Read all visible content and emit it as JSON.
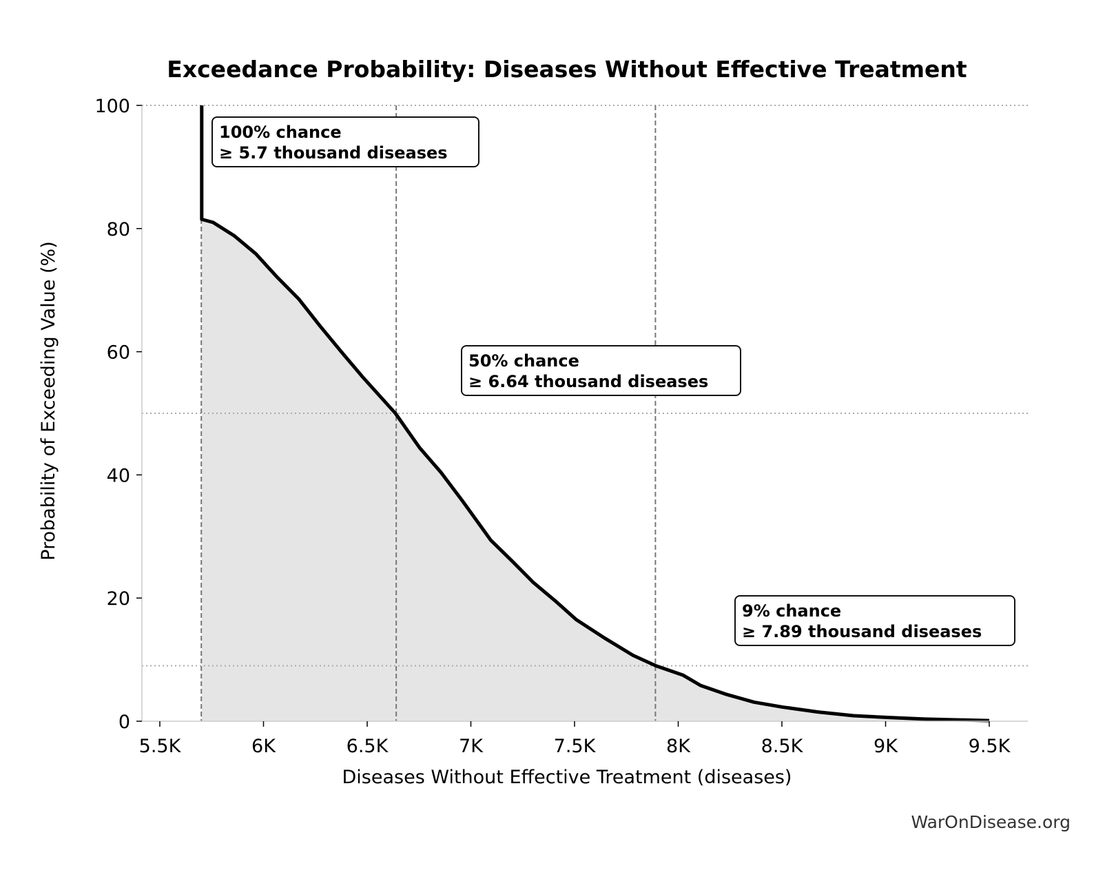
{
  "chart_data": {
    "type": "area",
    "title": "Exceedance Probability: Diseases Without Effective Treatment",
    "xlabel": "Diseases Without Effective Treatment (diseases)",
    "ylabel": "Probability of Exceeding Value (%)",
    "xlim": [
      5414,
      9689
    ],
    "ylim": [
      0,
      100
    ],
    "x_ticks": [
      5500,
      6000,
      6500,
      7000,
      7500,
      8000,
      8500,
      9000,
      9500
    ],
    "x_tick_labels": [
      "5.5K",
      "6K",
      "6.5K",
      "7K",
      "7.5K",
      "8K",
      "8.5K",
      "9K",
      "9.5K"
    ],
    "y_ticks": [
      0,
      20,
      40,
      60,
      80,
      100
    ],
    "y_tick_labels": [
      "0",
      "20",
      "40",
      "60",
      "80",
      "100"
    ],
    "grid": false,
    "line_color": "#000000",
    "fill_color": "#e5e5e5",
    "series": [
      {
        "x": [
          5702,
          5702,
          5757,
          5860,
          5963,
          6066,
          6169,
          6272,
          6375,
          6478,
          6636,
          6753,
          6856,
          6959,
          7096,
          7199,
          7302,
          7405,
          7508,
          7645,
          7782,
          7892,
          8022,
          8108,
          8228,
          8365,
          8502,
          8674,
          8845,
          9017,
          9188,
          9500
        ],
        "y": [
          100,
          81.5,
          81,
          78.8,
          75.9,
          72.1,
          68.6,
          64.2,
          60,
          55.9,
          50,
          44.4,
          40.4,
          35.8,
          29.4,
          26,
          22.5,
          19.6,
          16.5,
          13.5,
          10.7,
          9,
          7.5,
          5.8,
          4.4,
          3.1,
          2.3,
          1.5,
          0.9,
          0.6,
          0.35,
          0.1
        ]
      }
    ],
    "reference_lines": {
      "vertical": [
        5700,
        6640,
        7890
      ],
      "horizontal": [
        100,
        50,
        9
      ]
    },
    "annotations": [
      {
        "line1": "100% chance",
        "line2": "≥ 5.7 thousand diseases"
      },
      {
        "line1": "50% chance",
        "line2": "≥ 6.64 thousand diseases"
      },
      {
        "line1": "9% chance",
        "line2": "≥ 7.89 thousand diseases"
      }
    ]
  },
  "watermark": "WarOnDisease.org"
}
